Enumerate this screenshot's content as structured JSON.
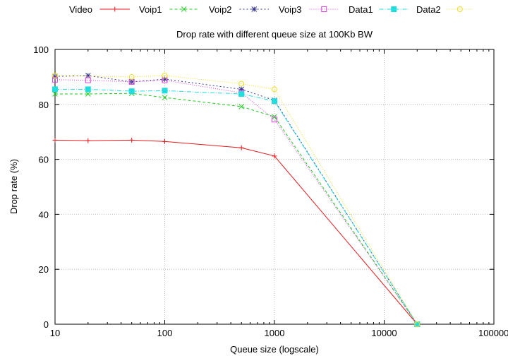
{
  "chart_data": {
    "type": "line",
    "title": "Drop rate with different queue size at 100Kb BW",
    "xlabel": "Queue size (logscale)",
    "ylabel": "Drop rate (%)",
    "xscale": "log",
    "xlim": [
      10,
      100000
    ],
    "ylim": [
      0,
      100
    ],
    "grid": true,
    "legend_position": "top",
    "x_ticks": [
      {
        "value": 10,
        "label": "10"
      },
      {
        "value": 100,
        "label": "100"
      },
      {
        "value": 1000,
        "label": "1000"
      },
      {
        "value": 10000,
        "label": "10000"
      },
      {
        "value": 100000,
        "label": "100000"
      }
    ],
    "y_ticks": [
      {
        "value": 0,
        "label": "0"
      },
      {
        "value": 20,
        "label": "20"
      },
      {
        "value": 40,
        "label": "40"
      },
      {
        "value": 60,
        "label": "60"
      },
      {
        "value": 80,
        "label": "80"
      },
      {
        "value": 100,
        "label": "100"
      }
    ],
    "series": [
      {
        "name": "Video",
        "color": "#e41a1c",
        "dash": "",
        "marker": "plus",
        "x": [
          10,
          20,
          50,
          100,
          500,
          1000,
          20000
        ],
        "y": [
          67.0,
          66.8,
          67.0,
          66.5,
          64.2,
          61.2,
          0
        ]
      },
      {
        "name": "Voip1",
        "color": "#22cc22",
        "dash": "4,3",
        "marker": "x",
        "x": [
          10,
          20,
          50,
          100,
          500,
          1000,
          20000
        ],
        "y": [
          83.8,
          83.8,
          84.0,
          82.5,
          79.2,
          75.5,
          0
        ]
      },
      {
        "name": "Voip2",
        "color": "#33338f",
        "dash": "2,3",
        "marker": "star",
        "x": [
          10,
          20,
          50,
          100,
          500,
          1000,
          20000
        ],
        "y": [
          90.2,
          90.5,
          88.2,
          89.2,
          85.5,
          81.5,
          0
        ]
      },
      {
        "name": "Voip3",
        "color": "#dd44dd",
        "dash": "1,2",
        "marker": "square",
        "x": [
          10,
          20,
          50,
          100,
          500,
          1000,
          20000
        ],
        "y": [
          89.0,
          88.8,
          88.2,
          88.8,
          84.2,
          74.5,
          0
        ]
      },
      {
        "name": "Data1",
        "color": "#22dddd",
        "dash": "6,2,1,2",
        "marker": "filled-square",
        "x": [
          10,
          20,
          50,
          100,
          500,
          1000,
          20000
        ],
        "y": [
          85.5,
          85.5,
          84.8,
          85.0,
          83.8,
          81.2,
          0
        ]
      },
      {
        "name": "Data2",
        "color": "#eedd22",
        "dash": "1,2",
        "marker": "circle",
        "x": [
          10,
          50,
          100,
          500,
          1000,
          20000
        ],
        "y": [
          90.5,
          90.0,
          90.5,
          87.5,
          85.5,
          0
        ]
      }
    ]
  }
}
